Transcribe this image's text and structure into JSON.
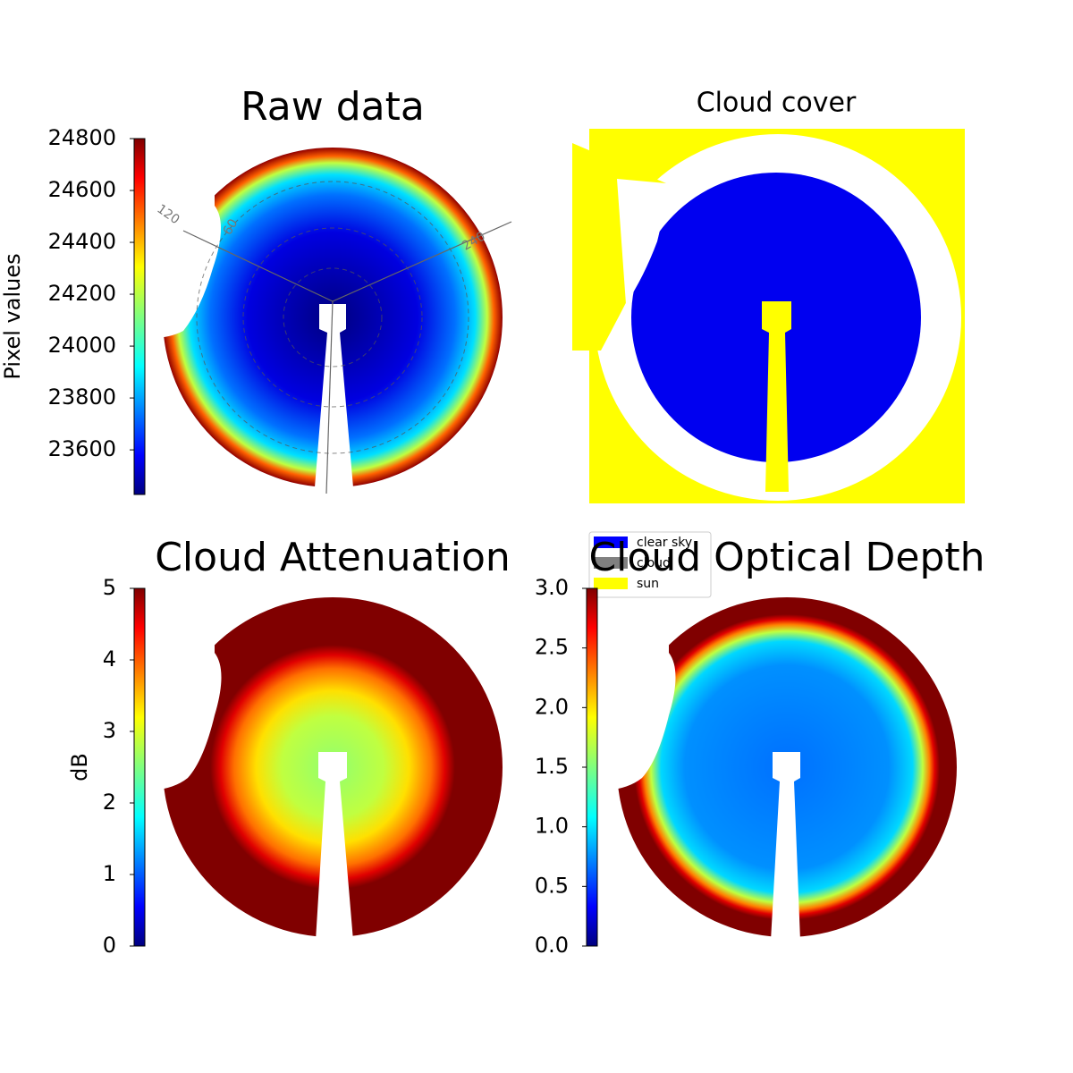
{
  "chart_data": [
    {
      "type": "image",
      "title": "Raw data",
      "colorbar_label": "Pixel values",
      "clim": [
        23428,
        24800
      ],
      "ticks": [
        23600,
        23800,
        24000,
        24200,
        24400,
        24600,
        24800
      ],
      "angle_labels": [
        "120",
        "60",
        "240"
      ]
    },
    {
      "type": "categorical-image",
      "title": "Cloud cover",
      "legend": [
        {
          "name": "clear sky",
          "color": "#0000ff"
        },
        {
          "name": "cloud",
          "color": "#808080"
        },
        {
          "name": "sun",
          "color": "#ffff00"
        }
      ]
    },
    {
      "type": "image",
      "title": "Cloud Attenuation",
      "colorbar_label": "dB",
      "clim": [
        0,
        5
      ],
      "ticks": [
        0,
        1,
        2,
        3,
        4,
        5
      ]
    },
    {
      "type": "image",
      "title": "Cloud Optical Depth",
      "clim": [
        0,
        3
      ],
      "ticks": [
        {
          "value": 0,
          "label": "0.0"
        },
        {
          "value": 0.5,
          "label": "0.5"
        },
        {
          "value": 1,
          "label": "1.0"
        },
        {
          "value": 1.5,
          "label": "1.5"
        },
        {
          "value": 2,
          "label": "2.0"
        },
        {
          "value": 2.5,
          "label": "2.5"
        },
        {
          "value": 3,
          "label": "3.0"
        }
      ]
    }
  ]
}
